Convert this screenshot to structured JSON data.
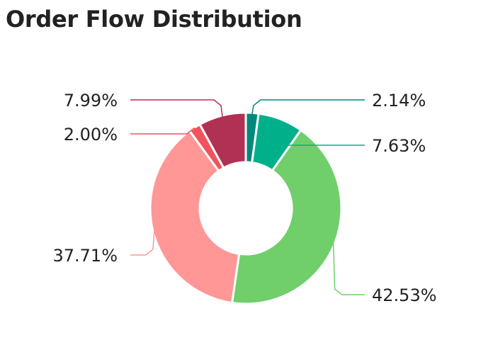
{
  "title": "Order Flow Distribution",
  "chart_data": {
    "type": "pie",
    "variant": "donut",
    "title": "Order Flow Distribution",
    "direction": "clockwise from top",
    "slices": [
      {
        "value": 2.14,
        "label": "2.14%",
        "color": "#00897b",
        "label_side": "right"
      },
      {
        "value": 7.63,
        "label": "7.63%",
        "color": "#00b08a",
        "label_side": "right"
      },
      {
        "value": 42.53,
        "label": "42.53%",
        "color": "#70cf6b",
        "label_side": "right"
      },
      {
        "value": 37.71,
        "label": "37.71%",
        "color": "#ff9797",
        "label_side": "left"
      },
      {
        "value": 2.0,
        "label": "2.00%",
        "color": "#f2525d",
        "label_side": "left"
      },
      {
        "value": 7.99,
        "label": "7.99%",
        "color": "#b03154",
        "label_side": "left"
      }
    ]
  }
}
